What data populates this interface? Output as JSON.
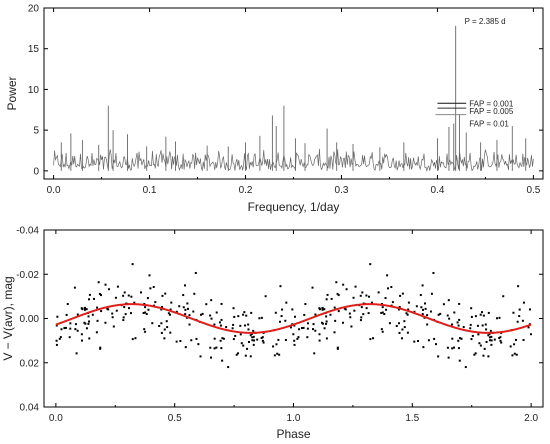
{
  "chart_data": [
    {
      "type": "line",
      "title": "",
      "xlabel": "Frequency, 1/day",
      "ylabel": "Power",
      "xlim": [
        -0.01,
        0.51
      ],
      "ylim": [
        -1,
        20
      ],
      "xticks": [
        0.0,
        0.1,
        0.2,
        0.3,
        0.4,
        0.5
      ],
      "xtick_labels": [
        "0.0",
        "0.1",
        "0.2",
        "0.3",
        "0.4",
        "0.5"
      ],
      "yticks": [
        0,
        5,
        10,
        15,
        20
      ],
      "ytick_labels": [
        "0",
        "5",
        "10",
        "15",
        "20"
      ],
      "grid": false,
      "series_color": "#666666",
      "noise": {
        "x_start": 0.0,
        "x_end": 0.5,
        "step": 0.001,
        "baseline": 0.8,
        "amplitude": 2.0
      },
      "peaks": [
        {
          "x": 0.008,
          "y": 3.5
        },
        {
          "x": 0.018,
          "y": 4.6
        },
        {
          "x": 0.03,
          "y": 3.8
        },
        {
          "x": 0.047,
          "y": 3.2
        },
        {
          "x": 0.057,
          "y": 8.0
        },
        {
          "x": 0.062,
          "y": 5.0
        },
        {
          "x": 0.077,
          "y": 4.5
        },
        {
          "x": 0.097,
          "y": 3.0
        },
        {
          "x": 0.117,
          "y": 4.2
        },
        {
          "x": 0.127,
          "y": 3.6
        },
        {
          "x": 0.16,
          "y": 3.1
        },
        {
          "x": 0.182,
          "y": 3.0
        },
        {
          "x": 0.2,
          "y": 3.5
        },
        {
          "x": 0.215,
          "y": 4.3
        },
        {
          "x": 0.228,
          "y": 6.8
        },
        {
          "x": 0.232,
          "y": 5.5
        },
        {
          "x": 0.24,
          "y": 8.0
        },
        {
          "x": 0.252,
          "y": 4.0
        },
        {
          "x": 0.262,
          "y": 3.4
        },
        {
          "x": 0.285,
          "y": 5.2
        },
        {
          "x": 0.295,
          "y": 3.5
        },
        {
          "x": 0.312,
          "y": 3.3
        },
        {
          "x": 0.34,
          "y": 2.9
        },
        {
          "x": 0.365,
          "y": 3.5
        },
        {
          "x": 0.4,
          "y": 4.0
        },
        {
          "x": 0.412,
          "y": 5.4
        },
        {
          "x": 0.417,
          "y": 5.8
        },
        {
          "x": 0.419,
          "y": 17.8
        },
        {
          "x": 0.423,
          "y": 7.0
        },
        {
          "x": 0.43,
          "y": 4.7
        },
        {
          "x": 0.445,
          "y": 3.5
        },
        {
          "x": 0.462,
          "y": 3.8
        },
        {
          "x": 0.478,
          "y": 5.5
        },
        {
          "x": 0.492,
          "y": 4.0
        }
      ],
      "annotations": [
        {
          "text": "P = 2.385 d",
          "x": 0.42,
          "y": 18.4
        }
      ],
      "fap_levels": [
        {
          "label": "FAP = 0.001",
          "value": 8.3,
          "x_start": 0.4,
          "x_end": 0.43,
          "color": "#111111"
        },
        {
          "label": "FAP = 0.005",
          "value": 7.7,
          "x_start": 0.4,
          "x_end": 0.43,
          "color": "#333333"
        },
        {
          "label": "FAP = 0.01",
          "value": 6.9,
          "x_start": 0.398,
          "x_end": 0.43,
          "color": "#888888"
        }
      ]
    },
    {
      "type": "scatter",
      "title": "",
      "xlabel": "Phase",
      "ylabel": "V − V(avr), mag",
      "xlim": [
        -0.05,
        2.05
      ],
      "ylim": [
        0.04,
        -0.04
      ],
      "y_inverted": true,
      "xticks": [
        0.0,
        0.5,
        1.0,
        1.5,
        2.0
      ],
      "xtick_labels": [
        "0.0",
        "0.5",
        "1.0",
        "1.5",
        "2.0"
      ],
      "yticks": [
        -0.04,
        -0.02,
        0.0,
        0.02,
        0.04
      ],
      "ytick_labels": [
        "-0.04",
        "-0.02",
        "0.00",
        "0.02",
        "0.04"
      ],
      "grid": false,
      "point_color": "#000000",
      "points_per_cycle": 220,
      "scatter_sigma": 0.0075,
      "fit": {
        "type": "sine",
        "period_in_phase": 1.0,
        "amplitude": 0.0065,
        "max_brightness_phase": 0.32,
        "color": "#e0201c"
      }
    }
  ]
}
